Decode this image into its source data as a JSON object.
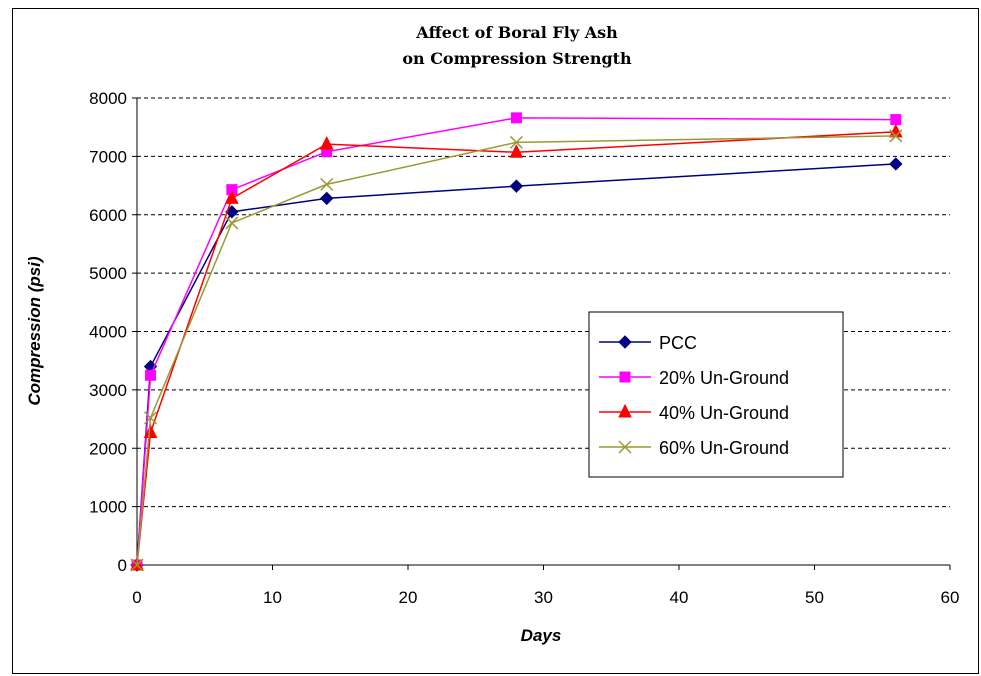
{
  "chart_data": {
    "type": "line",
    "title_line1": "Affect of Boral Fly Ash",
    "title_line2": "on Compression Strength",
    "xlabel": "Days",
    "ylabel": "Compression (psi)",
    "xlim": [
      0,
      60
    ],
    "ylim": [
      0,
      8000
    ],
    "x_ticks": [
      0,
      10,
      20,
      30,
      40,
      50,
      60
    ],
    "y_ticks": [
      0,
      1000,
      2000,
      3000,
      4000,
      5000,
      6000,
      7000,
      8000
    ],
    "grid": "horizontal dashed",
    "legend_position": "right-middle",
    "series": [
      {
        "name": "PCC",
        "color": "#000080",
        "marker": "diamond",
        "x": [
          0,
          1,
          7,
          14,
          28,
          56
        ],
        "y": [
          0,
          3400,
          6050,
          6280,
          6490,
          6870
        ]
      },
      {
        "name": "20% Un-Ground",
        "color": "#ff00ff",
        "marker": "square",
        "x": [
          0,
          1,
          7,
          14,
          28,
          56
        ],
        "y": [
          0,
          3250,
          6430,
          7080,
          7660,
          7630
        ]
      },
      {
        "name": "40% Un-Ground",
        "color": "#ff0000",
        "marker": "triangle",
        "x": [
          0,
          1,
          7,
          14,
          28,
          56
        ],
        "y": [
          0,
          2270,
          6280,
          7210,
          7070,
          7420
        ]
      },
      {
        "name": "60% Un-Ground",
        "color": "#999933",
        "marker": "x",
        "x": [
          0,
          1,
          7,
          14,
          28,
          56
        ],
        "y": [
          0,
          2520,
          5860,
          6520,
          7240,
          7350
        ]
      }
    ]
  }
}
